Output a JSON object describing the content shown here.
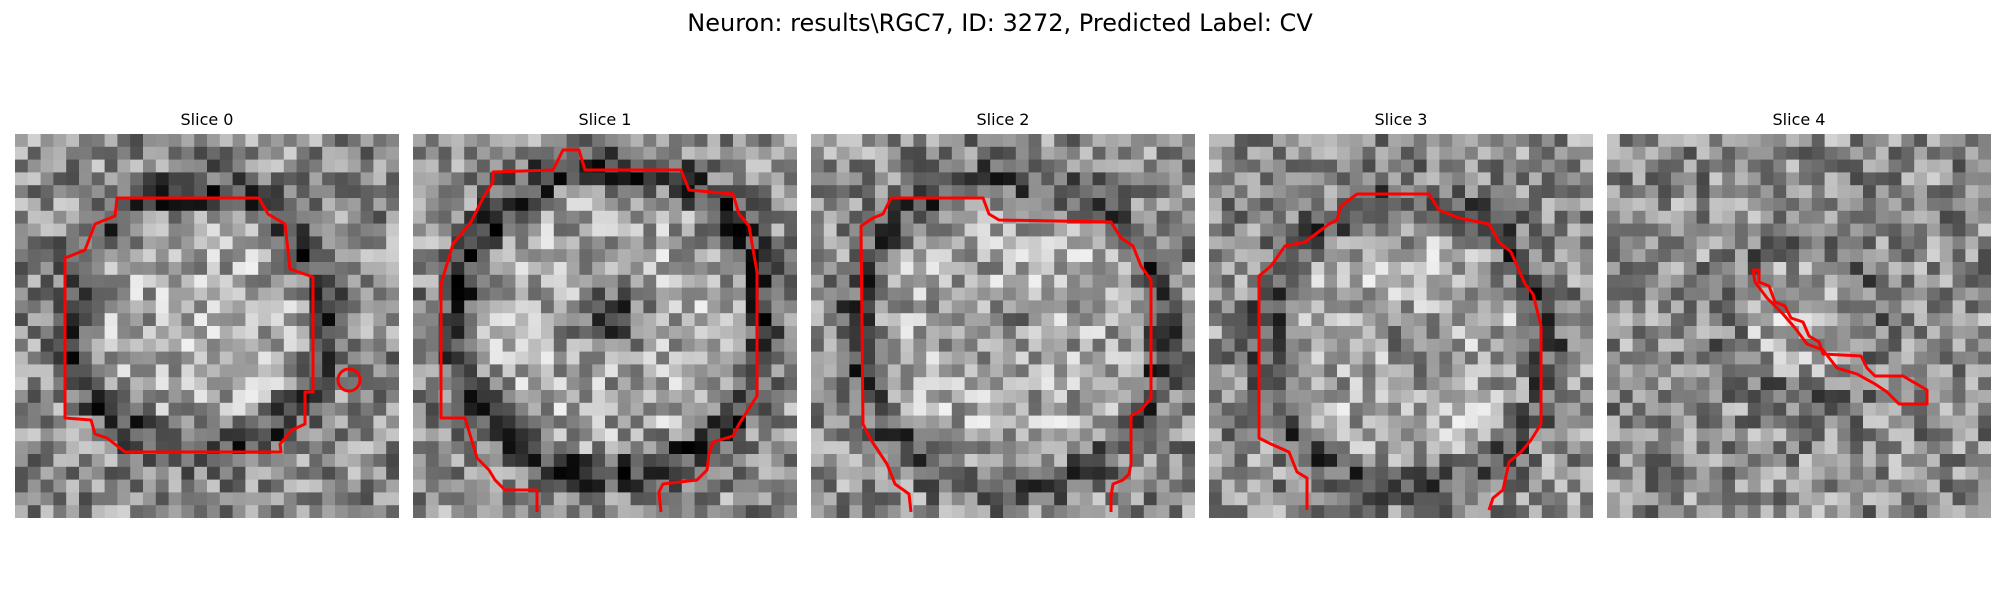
{
  "figure": {
    "title": "Neuron: results\\RGC7, ID: 3272, Predicted Label: CV"
  },
  "panels": [
    {
      "title": "Slice 0"
    },
    {
      "title": "Slice 1"
    },
    {
      "title": "Slice 2"
    },
    {
      "title": "Slice 3"
    },
    {
      "title": "Slice 4"
    }
  ],
  "colors": {
    "contour": "#ff0000",
    "background": "#ffffff"
  }
}
